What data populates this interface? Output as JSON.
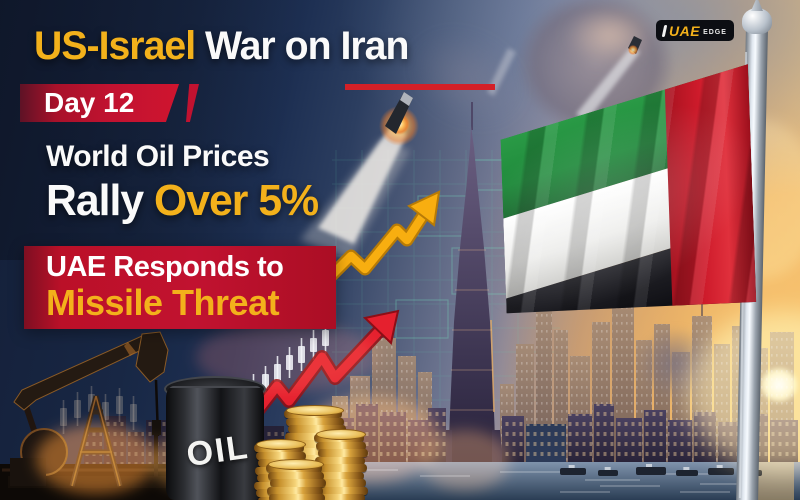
{
  "brand": {
    "name": "UAE",
    "suffix": "EDGE"
  },
  "header": {
    "title_highlight": "US-Israel",
    "title_rest": " War on Iran",
    "day_badge": "Day 12"
  },
  "headline": {
    "line1": "World Oil Prices",
    "line2_lead": "Rally ",
    "line2_accent": "Over 5%"
  },
  "alert": {
    "line1": "UAE Responds to",
    "line2": "Missile Threat"
  },
  "scene": {
    "barrel_label": "OIL"
  },
  "colors": {
    "accent_yellow": "#F3B11B",
    "banner_red": "#C11230",
    "underline_red": "#D42027",
    "arrow_red": "#E5202E",
    "arrow_yellow": "#F8AE10",
    "flag_green": "#1F8A3B",
    "flag_red": "#CE1B2B",
    "navy": "#16243F"
  }
}
